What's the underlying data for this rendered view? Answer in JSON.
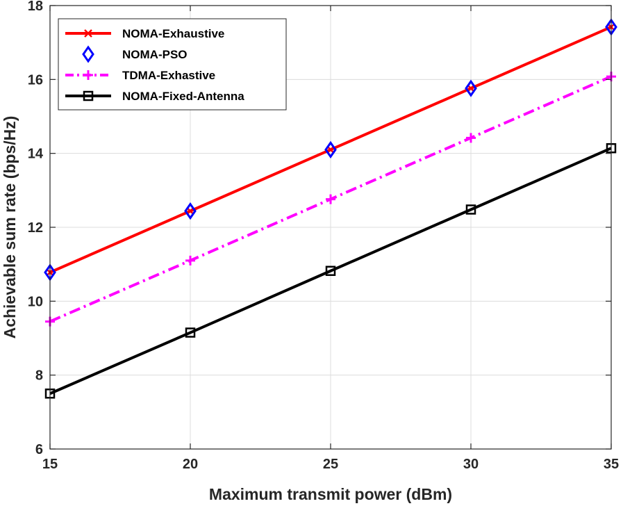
{
  "chart_data": {
    "type": "line",
    "xlabel": "Maximum transmit power (dBm)",
    "ylabel": "Achievable sum rate (bps/Hz)",
    "xlim": [
      15,
      35
    ],
    "ylim": [
      6,
      18
    ],
    "xticks": [
      15,
      20,
      25,
      30,
      35
    ],
    "yticks": [
      6,
      8,
      10,
      12,
      14,
      16,
      18
    ],
    "grid": true,
    "legend_position": "top-left",
    "x": [
      15,
      20,
      25,
      30,
      35
    ],
    "series": [
      {
        "name": "NOMA-Exhaustive",
        "values": [
          10.78,
          12.44,
          14.1,
          15.76,
          17.42
        ],
        "color": "#ff0000",
        "line": "solid",
        "marker": "x"
      },
      {
        "name": "NOMA-PSO",
        "values": [
          10.78,
          12.44,
          14.1,
          15.76,
          17.42
        ],
        "color": "#0000ff",
        "line": "none",
        "marker": "diamond"
      },
      {
        "name": "TDMA-Exhastive",
        "values": [
          9.45,
          11.1,
          12.76,
          14.42,
          16.08
        ],
        "color": "#ff00ff",
        "line": "dashdot",
        "marker": "plus"
      },
      {
        "name": "NOMA-Fixed-Antenna",
        "values": [
          7.5,
          9.15,
          10.82,
          12.48,
          14.14
        ],
        "color": "#000000",
        "line": "solid",
        "marker": "square"
      }
    ]
  }
}
